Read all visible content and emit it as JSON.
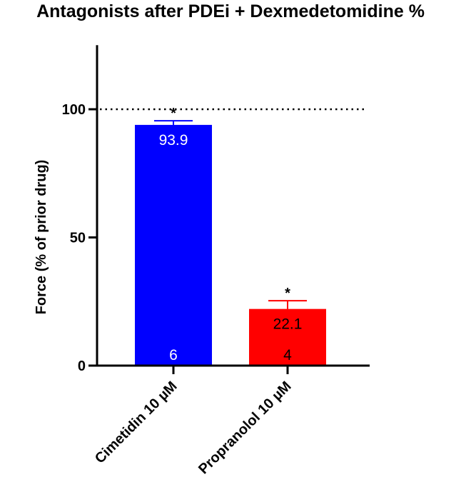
{
  "chart_data": {
    "type": "bar",
    "title": "Antagonists after PDEi + Dexmedetomidine %",
    "xlabel": "",
    "ylabel": "Force  (% of prior drug)",
    "ylim": [
      0,
      125
    ],
    "yticks": [
      0,
      50,
      100
    ],
    "grid": false,
    "reference_line": {
      "value": 100,
      "style": "dotted"
    },
    "categories": [
      "Cimetidin 10 µM",
      "Propranolol 10 µM"
    ],
    "values": [
      93.9,
      22.1
    ],
    "error_upper": [
      95.5,
      25.3
    ],
    "n_labels": [
      "6",
      "4"
    ],
    "value_labels": [
      "93.9",
      "22.1"
    ],
    "significance": [
      "*",
      "*"
    ],
    "colors": [
      "#0000ff",
      "#ff0000"
    ],
    "label_colors": [
      "#ffffff",
      "#000000"
    ]
  }
}
